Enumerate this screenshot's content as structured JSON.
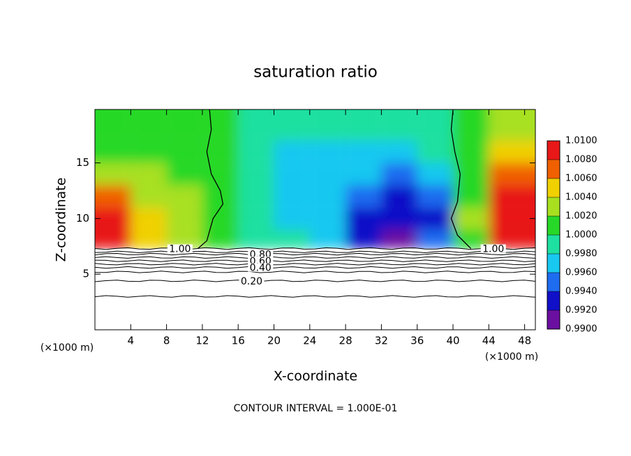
{
  "chart_data": {
    "type": "contour",
    "title": "saturation ratio",
    "x_label": "X-coordinate",
    "y_label": "Z-coordinate",
    "x_unit": "(×1000 m)",
    "footnote": "CONTOUR INTERVAL = 1.000E-01",
    "xlim": [
      0,
      49.2
    ],
    "ylim": [
      0,
      19.8
    ],
    "xticks": [
      4,
      8,
      12,
      16,
      20,
      24,
      28,
      32,
      36,
      40,
      44,
      48
    ],
    "yticks": [
      5,
      10,
      15
    ],
    "grid_x": [
      2,
      6,
      10,
      14,
      18,
      22,
      26,
      30,
      34,
      38,
      42,
      46
    ],
    "grid_z": [
      8,
      10,
      12,
      14,
      16,
      18
    ],
    "field": [
      [
        1.01,
        1.005,
        1.003,
        1.0,
        0.998,
        0.998,
        0.997,
        0.993,
        0.991,
        0.994,
        1.0,
        1.01
      ],
      [
        1.009,
        1.004,
        1.003,
        1.0,
        0.998,
        0.997,
        0.996,
        0.993,
        0.992,
        0.993,
        1.002,
        1.01
      ],
      [
        1.006,
        1.003,
        1.002,
        1.0,
        0.998,
        0.997,
        0.996,
        0.994,
        0.993,
        0.995,
        1.0,
        1.009
      ],
      [
        1.003,
        1.002,
        1.001,
        1.0,
        0.998,
        0.997,
        0.997,
        0.996,
        0.994,
        0.996,
        1.0,
        1.007
      ],
      [
        1.001,
        1.001,
        1.001,
        1.0,
        0.998,
        0.997,
        0.997,
        0.997,
        0.996,
        0.998,
        1.0,
        1.005
      ],
      [
        1.001,
        1.0005,
        1.0005,
        1.0,
        0.999,
        0.999,
        0.999,
        0.999,
        0.999,
        0.9995,
        1.0,
        1.003
      ]
    ],
    "colorbar": {
      "ticks": [
        {
          "value": 0.99,
          "label": "0.9900"
        },
        {
          "value": 0.992,
          "label": "0.9920"
        },
        {
          "value": 0.994,
          "label": "0.9940"
        },
        {
          "value": 0.996,
          "label": "0.9960"
        },
        {
          "value": 0.998,
          "label": "0.9980"
        },
        {
          "value": 1.0,
          "label": "1.0000"
        },
        {
          "value": 1.002,
          "label": "1.0020"
        },
        {
          "value": 1.004,
          "label": "1.0040"
        },
        {
          "value": 1.006,
          "label": "1.0060"
        },
        {
          "value": 1.008,
          "label": "1.0080"
        },
        {
          "value": 1.01,
          "label": "1.0100"
        }
      ],
      "colors": [
        "#6a0fa0",
        "#1010c8",
        "#1e6cf0",
        "#18c8f0",
        "#1ee0a0",
        "#28d828",
        "#a8e020",
        "#f0d000",
        "#f06000",
        "#e81818"
      ]
    },
    "contours": [
      {
        "value": 1.0,
        "z": 7.3,
        "label": "1.00"
      },
      {
        "value": 0.9,
        "z": 7.0
      },
      {
        "value": 0.8,
        "z": 6.8,
        "label": "0.80"
      },
      {
        "value": 0.7,
        "z": 6.5
      },
      {
        "value": 0.6,
        "z": 6.2,
        "label": "0.60"
      },
      {
        "value": 0.5,
        "z": 5.9
      },
      {
        "value": 0.4,
        "z": 5.6,
        "label": "0.40"
      },
      {
        "value": 0.3,
        "z": 5.2
      },
      {
        "value": 0.2,
        "z": 4.4,
        "label": "0.20"
      },
      {
        "value": 0.1,
        "z": 3.0
      }
    ],
    "contour_1_left": {
      "x": [
        11.5,
        12.5,
        13.2,
        14.3,
        14.0,
        13.0,
        12.5,
        13.0,
        12.8
      ],
      "z": [
        7.3,
        8,
        10,
        11.3,
        12.5,
        14,
        16,
        18,
        19.8
      ]
    },
    "contour_1_right": {
      "x": [
        42.0,
        40.5,
        39.8,
        40.5,
        40.8,
        40.2,
        39.8,
        40.0
      ],
      "z": [
        7.3,
        8.5,
        10,
        11.5,
        14,
        16,
        18,
        19.8
      ]
    }
  }
}
